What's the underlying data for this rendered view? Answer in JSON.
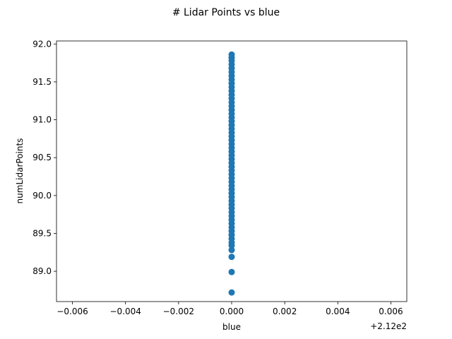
{
  "chart_data": {
    "type": "scatter",
    "title": "# Lidar Points vs blue",
    "xlabel": "blue",
    "ylabel": "numLidarPoints",
    "x_offset_label": "+2.12e2",
    "xlim": [
      -0.0066,
      0.0066
    ],
    "ylim": [
      88.6,
      92.04
    ],
    "x_ticks": [
      -0.006,
      -0.004,
      -0.002,
      0.0,
      0.002,
      0.004,
      0.006
    ],
    "x_tick_labels": [
      "−0.006",
      "−0.004",
      "−0.002",
      "0.000",
      "0.002",
      "0.004",
      "0.006"
    ],
    "y_ticks": [
      89.0,
      89.5,
      90.0,
      90.5,
      91.0,
      91.5,
      92.0
    ],
    "y_tick_labels": [
      "89.0",
      "89.5",
      "90.0",
      "90.5",
      "91.0",
      "91.5",
      "92.0"
    ],
    "grid": false,
    "marker_color": "#1f77b4",
    "x_value": 212.0,
    "points_x_offset": 0.0,
    "points_y": [
      88.72,
      88.99,
      89.19,
      89.28,
      89.34,
      89.38,
      89.43,
      89.48,
      89.53,
      89.58,
      89.63,
      89.68,
      89.73,
      89.78,
      89.83,
      89.88,
      89.93,
      89.98,
      90.03,
      90.08,
      90.13,
      90.18,
      90.23,
      90.28,
      90.33,
      90.38,
      90.43,
      90.48,
      90.53,
      90.58,
      90.63,
      90.68,
      90.73,
      90.78,
      90.83,
      90.88,
      90.93,
      90.98,
      91.03,
      91.08,
      91.13,
      91.18,
      91.23,
      91.28,
      91.33,
      91.38,
      91.43,
      91.48,
      91.53,
      91.58,
      91.63,
      91.68,
      91.73,
      91.78,
      91.82,
      91.86
    ]
  }
}
